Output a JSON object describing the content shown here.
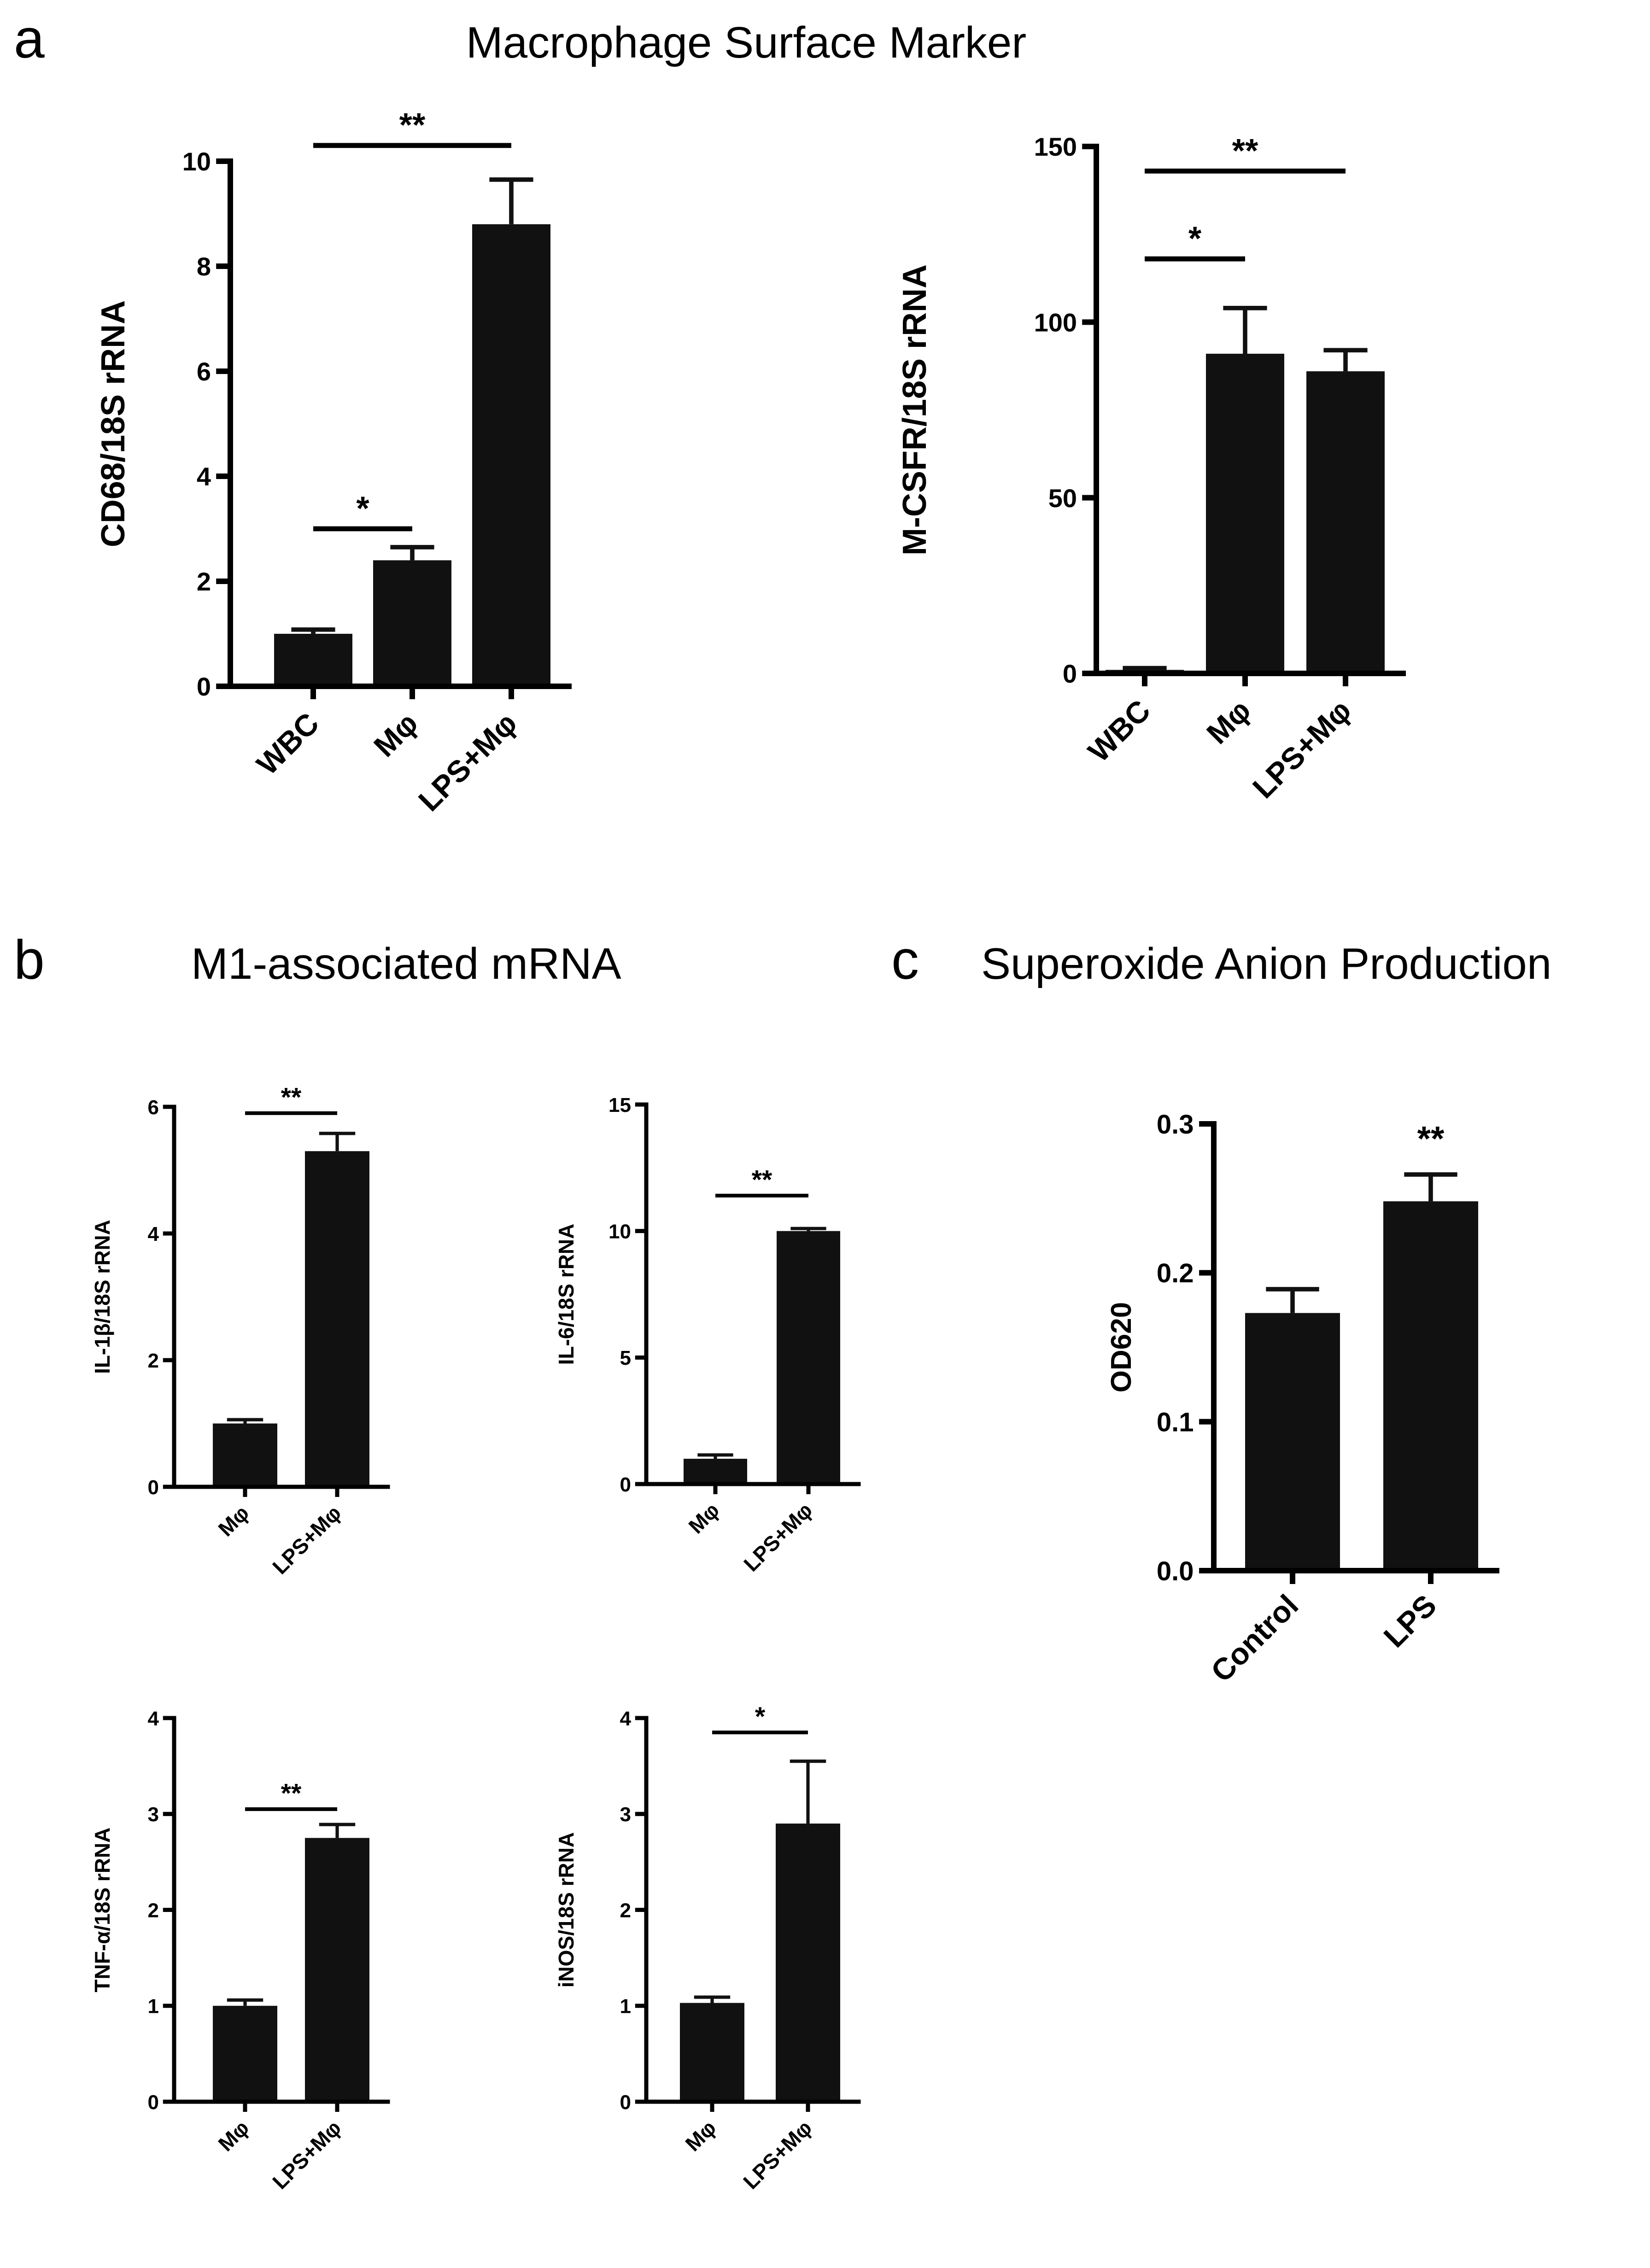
{
  "panels": {
    "a": {
      "letter": "a",
      "title": "Macrophage Surface Marker"
    },
    "b": {
      "letter": "b",
      "title": "M1-associated mRNA"
    },
    "c": {
      "letter": "c",
      "title": "Superoxide Anion Production"
    }
  },
  "colors": {
    "bar": "#111111",
    "axis": "#000000",
    "background": "#ffffff"
  },
  "chart_data": [
    {
      "id": "cd68",
      "panel": "a",
      "type": "bar",
      "title": "",
      "xlabel": "",
      "ylabel": "CD68/18S rRNA",
      "categories": [
        "WBC",
        "Mφ",
        "LPS+Mφ"
      ],
      "values": [
        1.0,
        2.4,
        8.8
      ],
      "errors": [
        0.08,
        0.25,
        0.85
      ],
      "ylim": [
        0,
        10
      ],
      "yticks": [
        0,
        2,
        4,
        6,
        8,
        10
      ],
      "ytick_labels": [
        "0",
        "2",
        "4",
        "6",
        "8",
        "10"
      ],
      "significance": [
        {
          "from": 0,
          "to": 1,
          "label": "*",
          "y": 3.0
        },
        {
          "from": 0,
          "to": 2,
          "label": "**",
          "y": 10.3
        }
      ]
    },
    {
      "id": "mcsfr",
      "panel": "a",
      "type": "bar",
      "title": "",
      "xlabel": "",
      "ylabel": "M-CSFR/18S rRNA",
      "categories": [
        "WBC",
        "Mφ",
        "LPS+Mφ"
      ],
      "values": [
        1,
        91,
        86
      ],
      "errors": [
        0.5,
        13,
        6
      ],
      "ylim": [
        0,
        150
      ],
      "yticks": [
        0,
        50,
        100,
        150
      ],
      "ytick_labels": [
        "0",
        "50",
        "100",
        "150"
      ],
      "significance": [
        {
          "from": 0,
          "to": 1,
          "label": "*",
          "y": 118
        },
        {
          "from": 0,
          "to": 2,
          "label": "**",
          "y": 143
        }
      ]
    },
    {
      "id": "il1b",
      "panel": "b",
      "type": "bar",
      "title": "",
      "xlabel": "",
      "ylabel": "IL-1β/18S rRNA",
      "categories": [
        "Mφ",
        "LPS+Mφ"
      ],
      "values": [
        1.0,
        5.3
      ],
      "errors": [
        0.06,
        0.28
      ],
      "ylim": [
        0,
        6
      ],
      "yticks": [
        0,
        2,
        4,
        6
      ],
      "ytick_labels": [
        "0",
        "2",
        "4",
        "6"
      ],
      "significance": [
        {
          "from": 0,
          "to": 1,
          "label": "**",
          "y": 5.9
        }
      ]
    },
    {
      "id": "il6",
      "panel": "b",
      "type": "bar",
      "title": "",
      "xlabel": "",
      "ylabel": "IL-6/18S rRNA",
      "categories": [
        "Mφ",
        "LPS+Mφ"
      ],
      "values": [
        1.0,
        10.0
      ],
      "errors": [
        0.15,
        0.1
      ],
      "ylim": [
        0,
        15
      ],
      "yticks": [
        0,
        5,
        10,
        15
      ],
      "ytick_labels": [
        "0",
        "5",
        "10",
        "15"
      ],
      "significance": [
        {
          "from": 0,
          "to": 1,
          "label": "**",
          "y": 11.4
        }
      ]
    },
    {
      "id": "tnfa",
      "panel": "b",
      "type": "bar",
      "title": "",
      "xlabel": "",
      "ylabel": "TNF-α/18S rRNA",
      "categories": [
        "Mφ",
        "LPS+Mφ"
      ],
      "values": [
        1.0,
        2.75
      ],
      "errors": [
        0.06,
        0.14
      ],
      "ylim": [
        0,
        4
      ],
      "yticks": [
        0,
        1,
        2,
        3,
        4
      ],
      "ytick_labels": [
        "0",
        "1",
        "2",
        "3",
        "4"
      ],
      "significance": [
        {
          "from": 0,
          "to": 1,
          "label": "**",
          "y": 3.05
        }
      ]
    },
    {
      "id": "inos",
      "panel": "b",
      "type": "bar",
      "title": "",
      "xlabel": "",
      "ylabel": "iNOS/18S rRNA",
      "categories": [
        "Mφ",
        "LPS+Mφ"
      ],
      "values": [
        1.03,
        2.9
      ],
      "errors": [
        0.06,
        0.65
      ],
      "ylim": [
        0,
        4
      ],
      "yticks": [
        0,
        1,
        2,
        3,
        4
      ],
      "ytick_labels": [
        "0",
        "1",
        "2",
        "3",
        "4"
      ],
      "significance": [
        {
          "from": 0,
          "to": 1,
          "label": "*",
          "y": 3.85
        }
      ]
    },
    {
      "id": "od620",
      "panel": "c",
      "type": "bar",
      "title": "",
      "xlabel": "",
      "ylabel": "OD620",
      "categories": [
        "Control",
        "LPS"
      ],
      "values": [
        0.173,
        0.248
      ],
      "errors": [
        0.016,
        0.018
      ],
      "ylim": [
        0,
        0.3
      ],
      "yticks": [
        0,
        0.1,
        0.2,
        0.3
      ],
      "ytick_labels": [
        "0.0",
        "0.1",
        "0.2",
        "0.3"
      ],
      "significance": [
        {
          "from": 1,
          "to": 1,
          "label": "**",
          "y": 0.282
        }
      ]
    }
  ]
}
